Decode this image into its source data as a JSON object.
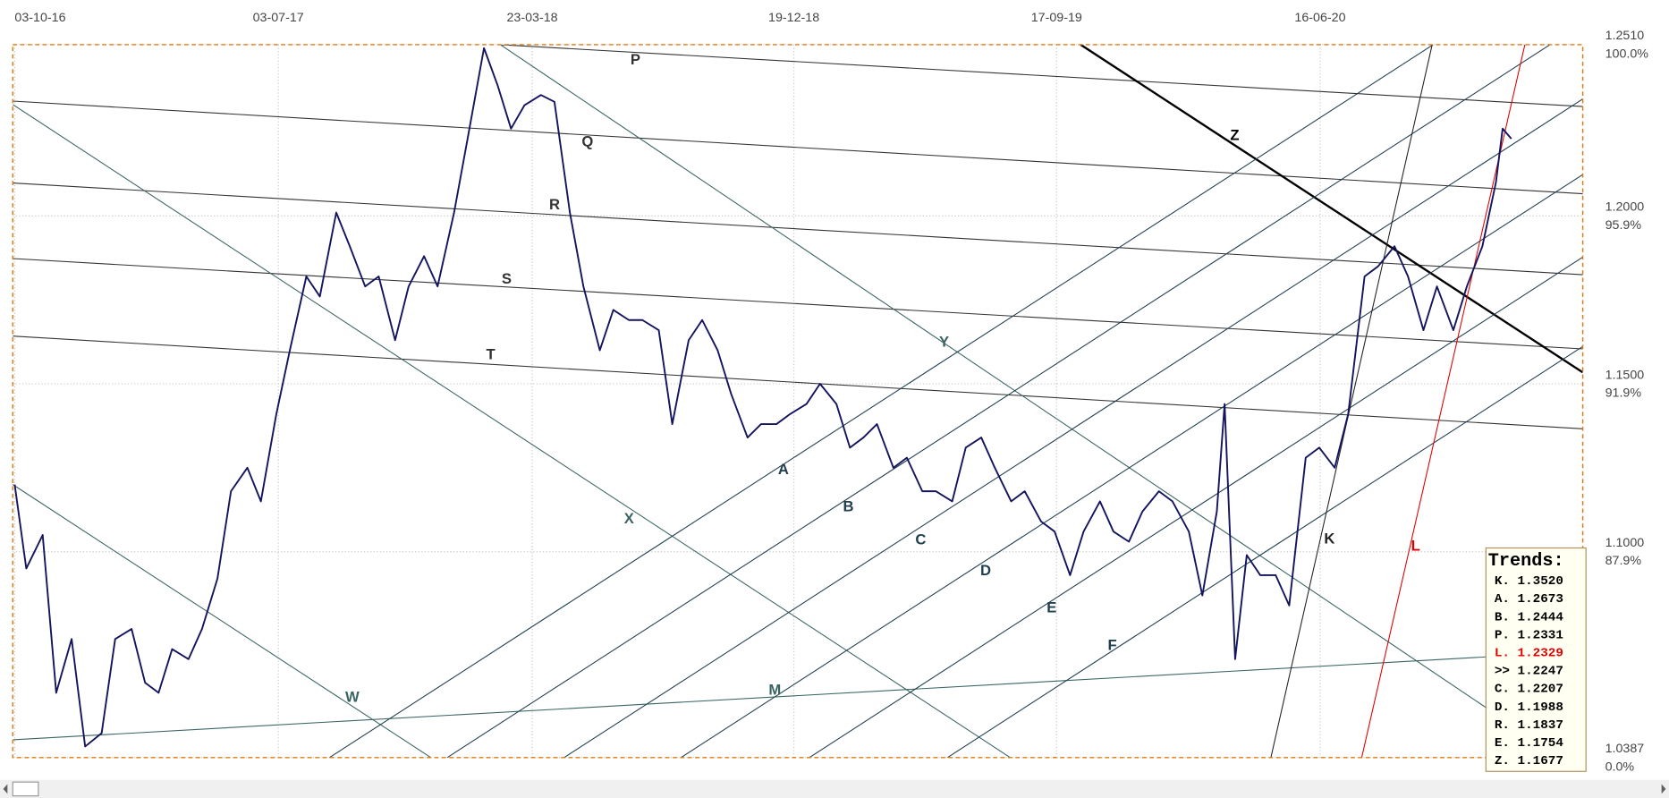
{
  "chart_data": {
    "type": "line",
    "xlim": [
      "01-10-16",
      "15-03-21"
    ],
    "xticks": [
      "03-10-16",
      "03-07-17",
      "23-03-18",
      "19-12-18",
      "17-09-19",
      "16-06-20"
    ],
    "ylim": [
      1.0387,
      1.251
    ],
    "yticks": [
      {
        "value": 1.251,
        "label": "1.2510",
        "pct_label": "100.0%"
      },
      {
        "value": 1.2,
        "label": "1.2000",
        "pct_label": "95.9%"
      },
      {
        "value": 1.15,
        "label": "1.1500",
        "pct_label": "91.9%"
      },
      {
        "value": 1.1,
        "label": "1.1000",
        "pct_label": "87.9%"
      },
      {
        "value": 1.0387,
        "label": "1.0387",
        "pct_label": "0.0%"
      }
    ],
    "grid": true,
    "series": [
      {
        "color": "#14145f",
        "x": [
          "03-10-16",
          "15-10-16",
          "01-11-16",
          "15-11-16",
          "01-12-16",
          "15-12-16",
          "01-01-17",
          "15-01-17",
          "01-02-17",
          "15-02-17",
          "01-03-17",
          "15-03-17",
          "01-04-17",
          "15-04-17",
          "01-05-17",
          "15-05-17",
          "01-06-17",
          "15-06-17",
          "01-07-17",
          "15-07-17",
          "01-08-17",
          "15-08-17",
          "01-09-17",
          "15-09-17",
          "01-10-17",
          "15-10-17",
          "01-11-17",
          "15-11-17",
          "01-12-17",
          "15-12-17",
          "01-01-18",
          "15-01-18",
          "01-02-18",
          "15-02-18",
          "01-03-18",
          "15-03-18",
          "01-04-18",
          "15-04-18",
          "01-05-18",
          "15-05-18",
          "01-06-18",
          "15-06-18",
          "01-07-18",
          "15-07-18",
          "01-08-18",
          "15-08-18",
          "01-09-18",
          "15-09-18",
          "01-10-18",
          "15-10-18",
          "01-11-18",
          "15-11-18",
          "01-12-18",
          "15-12-18",
          "01-01-19",
          "15-01-19",
          "01-02-19",
          "15-02-19",
          "01-03-19",
          "15-03-19",
          "01-04-19",
          "15-04-19",
          "01-05-19",
          "15-05-19",
          "01-06-19",
          "15-06-19",
          "01-07-19",
          "15-07-19",
          "01-08-19",
          "15-08-19",
          "01-09-19",
          "15-09-19",
          "01-10-19",
          "15-10-19",
          "01-11-19",
          "15-11-19",
          "01-12-19",
          "15-12-19",
          "01-01-20",
          "15-01-20",
          "01-02-20",
          "15-02-20",
          "01-03-20",
          "09-03-20",
          "20-03-20",
          "01-04-20",
          "15-04-20",
          "01-05-20",
          "15-05-20",
          "01-06-20",
          "15-06-20",
          "01-07-20",
          "15-07-20",
          "01-08-20",
          "15-08-20",
          "01-09-20",
          "15-09-20",
          "01-10-20",
          "15-10-20",
          "01-11-20",
          "15-11-20",
          "01-12-20",
          "15-12-20",
          "22-12-20",
          "31-12-20"
        ],
        "values": [
          1.12,
          1.095,
          1.105,
          1.058,
          1.074,
          1.042,
          1.046,
          1.074,
          1.077,
          1.061,
          1.058,
          1.071,
          1.068,
          1.077,
          1.092,
          1.118,
          1.125,
          1.115,
          1.141,
          1.16,
          1.182,
          1.176,
          1.201,
          1.191,
          1.179,
          1.182,
          1.163,
          1.179,
          1.188,
          1.179,
          1.201,
          1.223,
          1.25,
          1.239,
          1.226,
          1.233,
          1.236,
          1.234,
          1.201,
          1.179,
          1.16,
          1.172,
          1.169,
          1.169,
          1.166,
          1.138,
          1.163,
          1.169,
          1.16,
          1.147,
          1.134,
          1.138,
          1.138,
          1.141,
          1.144,
          1.15,
          1.144,
          1.131,
          1.134,
          1.138,
          1.125,
          1.128,
          1.118,
          1.118,
          1.115,
          1.131,
          1.134,
          1.125,
          1.115,
          1.118,
          1.109,
          1.106,
          1.093,
          1.106,
          1.115,
          1.106,
          1.103,
          1.112,
          1.118,
          1.115,
          1.106,
          1.087,
          1.112,
          1.144,
          1.068,
          1.099,
          1.093,
          1.093,
          1.084,
          1.128,
          1.131,
          1.125,
          1.141,
          1.182,
          1.185,
          1.191,
          1.182,
          1.166,
          1.179,
          1.166,
          1.179,
          1.191,
          1.21,
          1.226,
          1.223
        ]
      }
    ],
    "trend_lines": [
      {
        "name": "P",
        "color": "#333333",
        "x": [
          "18-02-18",
          "15-03-21"
        ],
        "values": [
          1.251,
          1.2326
        ]
      },
      {
        "name": "Q",
        "color": "#333333",
        "x": [
          "01-10-16",
          "15-03-21"
        ],
        "values": [
          1.2342,
          1.2066
        ]
      },
      {
        "name": "R",
        "color": "#333333",
        "x": [
          "01-10-16",
          "15-03-21"
        ],
        "values": [
          1.2098,
          1.1825
        ]
      },
      {
        "name": "S",
        "color": "#333333",
        "x": [
          "01-10-16",
          "15-03-21"
        ],
        "values": [
          1.1873,
          1.1604
        ]
      },
      {
        "name": "T",
        "color": "#333333",
        "x": [
          "01-10-16",
          "15-03-21"
        ],
        "values": [
          1.1642,
          1.1366
        ]
      },
      {
        "name": "Z",
        "color": "#000000",
        "thick": true,
        "x": [
          "12-10-19",
          "15-03-21"
        ],
        "values": [
          1.251,
          1.1534
        ]
      },
      {
        "name": "Y",
        "color": "#3a6464",
        "x": [
          "18-02-18",
          "15-03-21"
        ],
        "values": [
          1.251,
          1.0342
        ]
      },
      {
        "name": "X",
        "color": "#3a6464",
        "x": [
          "01-10-16",
          "31-07-19"
        ],
        "values": [
          1.2332,
          1.0387
        ]
      },
      {
        "name": "W",
        "color": "#3a6464",
        "x": [
          "01-10-16",
          "08-12-17"
        ],
        "values": [
          1.12,
          1.0387
        ]
      },
      {
        "name": "M",
        "color": "#3a6464",
        "x": [
          "01-10-16",
          "15-03-21"
        ],
        "values": [
          1.044,
          1.0703
        ]
      },
      {
        "name": "A",
        "color": "#1f3f50",
        "x": [
          "25-08-17",
          "11-10-20"
        ],
        "values": [
          1.0387,
          1.251
        ]
      },
      {
        "name": "B",
        "color": "#1f3f50",
        "x": [
          "25-12-17",
          "09-02-21"
        ],
        "values": [
          1.0387,
          1.251
        ]
      },
      {
        "name": "C",
        "color": "#1f3f50",
        "x": [
          "25-04-18",
          "10-06-21"
        ],
        "values": [
          1.0387,
          1.251
        ]
      },
      {
        "name": "D",
        "color": "#1f3f50",
        "x": [
          "24-08-18",
          "09-10-21"
        ],
        "values": [
          1.0387,
          1.251
        ]
      },
      {
        "name": "E",
        "color": "#1f3f50",
        "x": [
          "04-01-19",
          "18-02-22"
        ],
        "values": [
          1.0387,
          1.251
        ]
      },
      {
        "name": "F",
        "color": "#1f3f50",
        "x": [
          "27-05-19",
          "11-07-22"
        ],
        "values": [
          1.0387,
          1.251
        ]
      },
      {
        "name": "K",
        "color": "#222222",
        "x": [
          "26-04-20",
          "10-10-20"
        ],
        "values": [
          1.0387,
          1.251
        ]
      },
      {
        "name": "L",
        "color": "#e00000",
        "x": [
          "29-07-20",
          "14-01-21"
        ],
        "values": [
          1.0387,
          1.251
        ]
      }
    ],
    "trends_panel": {
      "title": "Trends:",
      "rows": [
        {
          "text": "K. 1.3520"
        },
        {
          "text": "A. 1.2673"
        },
        {
          "text": "B. 1.2444"
        },
        {
          "text": "P. 1.2331"
        },
        {
          "text": "L. 1.2329",
          "color": "#e00000"
        },
        {
          "text": ">> 1.2247"
        },
        {
          "text": "C. 1.2207"
        },
        {
          "text": "D. 1.1988"
        },
        {
          "text": "R. 1.1837"
        },
        {
          "text": "E. 1.1754"
        },
        {
          "text": "Z. 1.1677"
        }
      ]
    }
  }
}
